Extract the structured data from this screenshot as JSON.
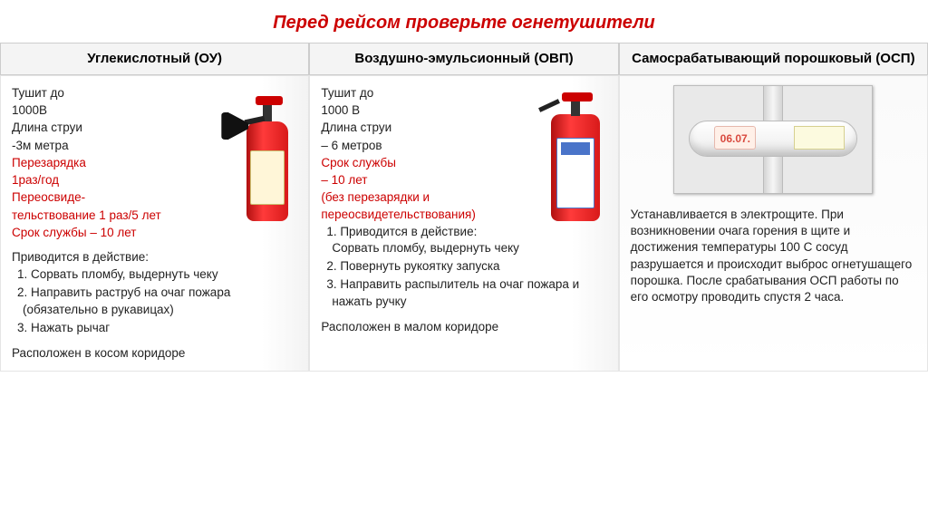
{
  "title": "Перед рейсом проверьте огнетушители",
  "title_color": "#cc0000",
  "title_fontsize": 20,
  "red_text_color": "#cc0000",
  "body_text_color": "#222222",
  "columns": [
    {
      "header": "Углекислотный (ОУ)"
    },
    {
      "header": "Воздушно-эмульсионный (ОВП)"
    },
    {
      "header": "Самосрабатывающий порошковый (ОСП)"
    }
  ],
  "col1": {
    "spec": [
      "Тушит до",
      "1000В",
      "Длина струи",
      "-3м метра"
    ],
    "spec_red": [
      "Перезарядка",
      "1раз/год",
      "Переосвиде-",
      "тельствование 1 раз/5 лет",
      "Срок службы – 10 лет"
    ],
    "action_intro": "Приводится в действие:",
    "actions": [
      "Сорвать пломбу, выдернуть чеку",
      "Направить раструб на очаг пожара (обязательно в рукавицах)",
      "Нажать рычаг"
    ],
    "location": "Расположен в косом коридоре"
  },
  "col2": {
    "spec": [
      "Тушит до",
      "1000 В",
      "Длина струи",
      "– 6 метров"
    ],
    "spec_red": [
      "Срок службы",
      " – 10 лет",
      "(без перезарядки и переосвидетельствования)"
    ],
    "actions": [
      "Приводится в действие: Сорвать пломбу, выдернуть чеку",
      "Повернуть рукоятку запуска",
      "Направить распылитель на очаг пожара и нажать ручку"
    ],
    "location": "Расположен в малом коридоре"
  },
  "col3": {
    "osp_tag": "06.07.",
    "text": "Устанавливается в электрощите.  При возникновении очага горения в щите и достижения температуры 100 С сосуд разрушается и происходит выброс огнетушащего порошка. После срабатывания ОСП работы по его осмотру проводить спустя 2 часа."
  }
}
